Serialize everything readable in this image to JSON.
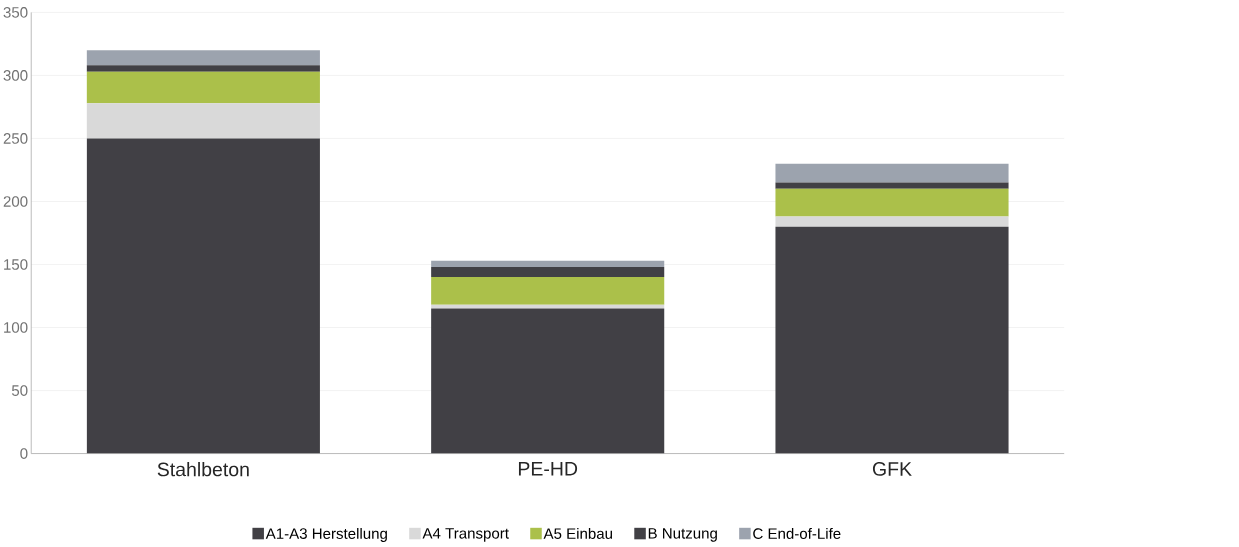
{
  "chart_data": {
    "type": "bar",
    "stacked": true,
    "categories": [
      "Stahlbeton",
      "PE-HD",
      "GFK"
    ],
    "series": [
      {
        "name": "A1-A3 Herstellung",
        "color": "#414045",
        "values": [
          250,
          115,
          180
        ]
      },
      {
        "name": "A4 Transport",
        "color": "#d9d9d9",
        "values": [
          28,
          3,
          8
        ]
      },
      {
        "name": "A5 Einbau",
        "color": "#abc04a",
        "values": [
          25,
          22,
          22
        ]
      },
      {
        "name": "B Nutzung",
        "color": "#414045",
        "values": [
          5,
          8,
          5
        ]
      },
      {
        "name": "C End-of-Life",
        "color": "#9ca3ae",
        "values": [
          12,
          5,
          15
        ]
      }
    ],
    "ylim": [
      0,
      350
    ],
    "yticks": [
      0,
      50,
      100,
      150,
      200,
      250,
      300,
      350
    ],
    "grid": "y",
    "legend": "bottom"
  }
}
